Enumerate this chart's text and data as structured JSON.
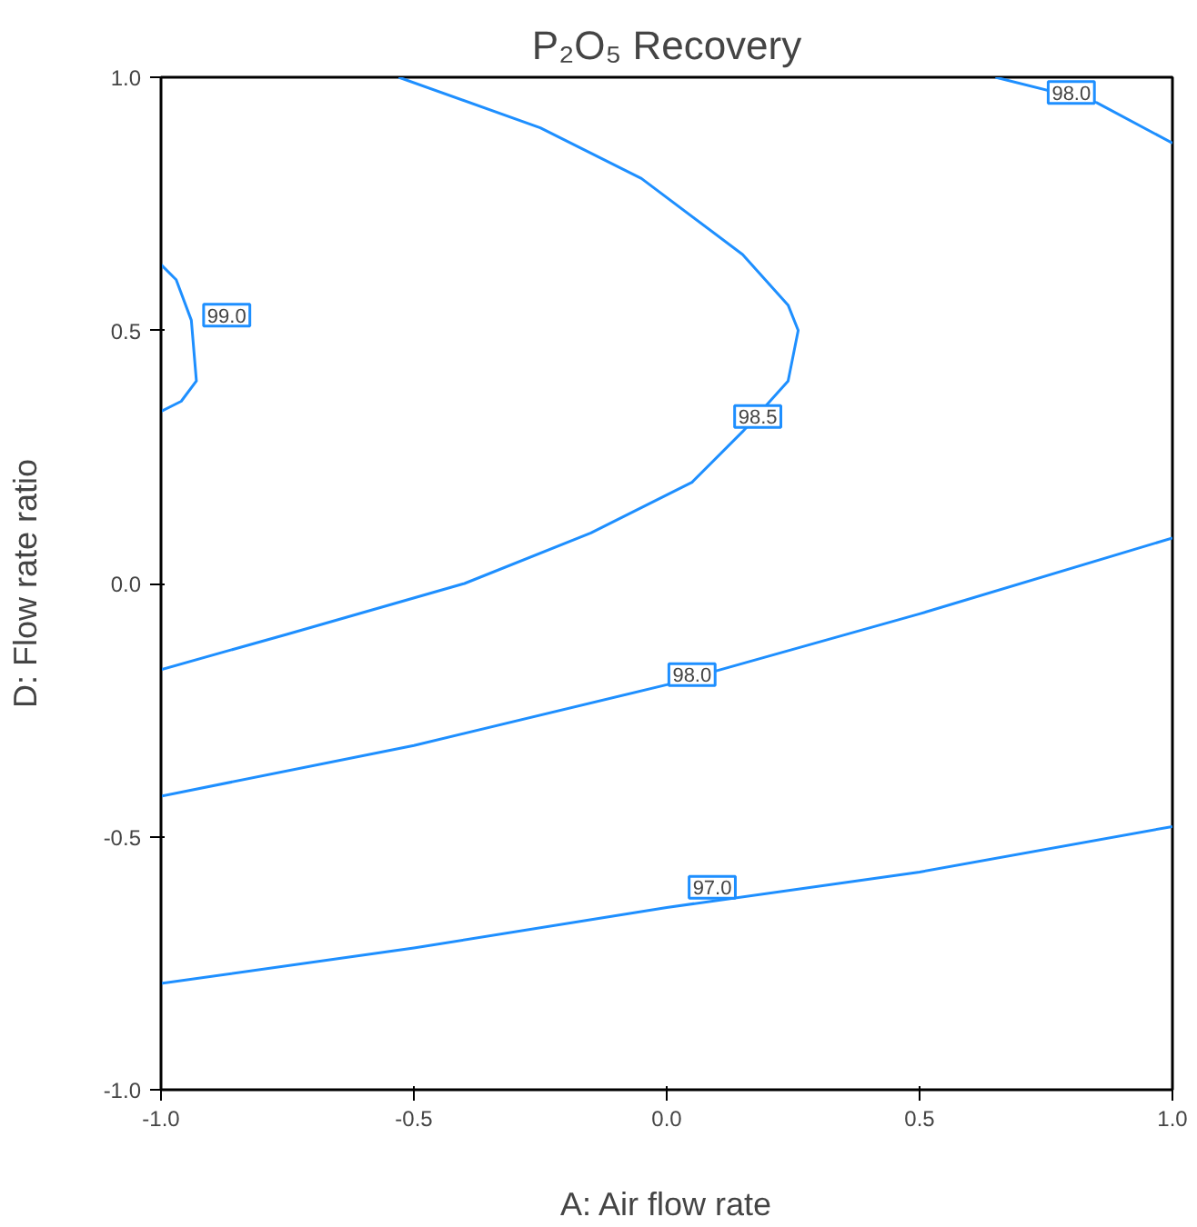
{
  "chart_data": {
    "type": "line",
    "title": "P₂O₅ Recovery",
    "xlabel": "A: Air flow rate",
    "ylabel": "D: Flow rate ratio",
    "xlim": [
      -1,
      1
    ],
    "ylim": [
      -1,
      1
    ],
    "xticks": [
      {
        "value": -1,
        "label": "-1.0"
      },
      {
        "value": -0.5,
        "label": "-0.5"
      },
      {
        "value": 0,
        "label": "0.0"
      },
      {
        "value": 0.5,
        "label": "0.5"
      },
      {
        "value": 1,
        "label": "1.0"
      }
    ],
    "yticks": [
      {
        "value": -1,
        "label": "-1.0"
      },
      {
        "value": -0.5,
        "label": "-0.5"
      },
      {
        "value": 0,
        "label": "0.0"
      },
      {
        "value": 0.5,
        "label": "0.5"
      },
      {
        "value": 1,
        "label": "1.0"
      }
    ],
    "grid": false,
    "marker": "none",
    "line_style": "solid",
    "series": [
      {
        "color": "#1e8fff",
        "x": [
          -1,
          -0.97,
          -0.94,
          -0.93,
          -0.96,
          -1
        ],
        "values": [
          0.63,
          0.6,
          0.52,
          0.4,
          0.36,
          0.34
        ]
      },
      {
        "color": "#1e8fff",
        "x": [
          -0.53,
          -0.25,
          -0.05,
          0.15,
          0.24,
          0.26,
          0.24,
          0.15,
          0.05,
          -0.15,
          -0.4,
          -0.75,
          -1
        ],
        "values": [
          1,
          0.9,
          0.8,
          0.65,
          0.55,
          0.5,
          0.4,
          0.3,
          0.2,
          0.1,
          0,
          -0.1,
          -0.17
        ]
      },
      {
        "color": "#1e8fff",
        "x": [
          0.65,
          0.85,
          1
        ],
        "values": [
          1,
          0.95,
          0.87
        ]
      },
      {
        "color": "#1e8fff",
        "x": [
          -1,
          -0.5,
          0,
          0.5,
          1
        ],
        "values": [
          -0.42,
          -0.32,
          -0.2,
          -0.06,
          0.09
        ]
      },
      {
        "color": "#1e8fff",
        "x": [
          -1,
          -0.5,
          0,
          0.5,
          1
        ],
        "values": [
          -0.79,
          -0.72,
          -0.64,
          -0.57,
          -0.48
        ]
      }
    ],
    "annotations": [
      {
        "text": "99.0",
        "x": -0.87,
        "y": 0.53
      },
      {
        "text": "98.5",
        "x": 0.18,
        "y": 0.33
      },
      {
        "text": "98.0",
        "x": 0.8,
        "y": 0.97
      },
      {
        "text": "98.0",
        "x": 0.05,
        "y": -0.18
      },
      {
        "text": "97.0",
        "x": 0.09,
        "y": -0.6
      }
    ]
  }
}
